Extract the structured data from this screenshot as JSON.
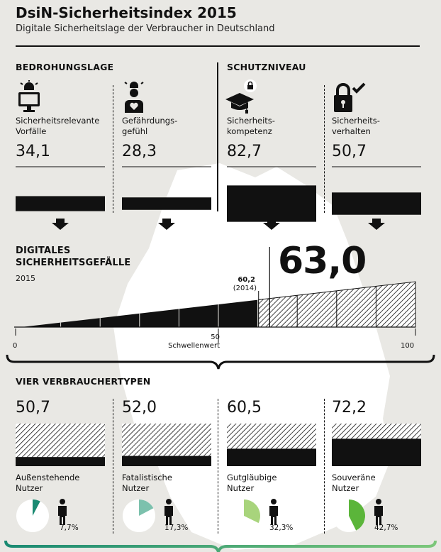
{
  "header": {
    "title": "DsiN-Sicherheitsindex 2015",
    "subtitle": "Digitale Sicherheitslage der Verbraucher in Deutschland"
  },
  "threat": {
    "heading": "BEDROHUNGSLAGE",
    "items": [
      {
        "label": "Sicherheitsrelevante Vorfälle",
        "value": "34,1",
        "icon": "alarm-monitor-icon"
      },
      {
        "label": "Gefährdungs-gefühl",
        "value": "28,3",
        "icon": "person-alarm-heart-icon"
      }
    ]
  },
  "protection": {
    "heading": "SCHUTZNIVEAU",
    "items": [
      {
        "label": "Sicherheits-kompetenz",
        "value": "82,7",
        "icon": "graduation-cap-lock-icon"
      },
      {
        "label": "Sicherheits-verhalten",
        "value": "50,7",
        "icon": "lock-check-icon"
      }
    ]
  },
  "gap": {
    "heading_line1": "DIGITALES",
    "heading_line2": "SICHERHEITSGEFÄLLE",
    "year": "2015",
    "current_value": "63,0",
    "previous_value": "60,2",
    "previous_year": "(2014)",
    "threshold_value": "50",
    "threshold_label": "Schwellenwert",
    "axis_min": "0",
    "axis_max": "100"
  },
  "types": {
    "heading": "VIER VERBRAUCHERTYPEN",
    "items": [
      {
        "value": "50,7",
        "label": "Außenstehende Nutzer",
        "share": "7,7%"
      },
      {
        "value": "52,0",
        "label": "Fatalistische Nutzer",
        "share": "17,3%"
      },
      {
        "value": "60,5",
        "label": "Gutgläubige Nutzer",
        "share": "32,3%"
      },
      {
        "value": "72,2",
        "label": "Souveräne Nutzer",
        "share": "42,7%"
      }
    ]
  },
  "colors": {
    "pie": [
      "#1a8a72",
      "#7cc1ad",
      "#a8d47c",
      "#5bb53a"
    ],
    "bottom_line": [
      "#1a8a72",
      "#7cc77a"
    ]
  },
  "chart_data": [
    {
      "type": "bar",
      "title": "BEDROHUNGSLAGE",
      "categories": [
        "Sicherheitsrelevante Vorfälle",
        "Gefährdungsgefühl"
      ],
      "values": [
        34.1,
        28.3
      ],
      "ylim": [
        0,
        100
      ]
    },
    {
      "type": "bar",
      "title": "SCHUTZNIVEAU",
      "categories": [
        "Sicherheitskompetenz",
        "Sicherheitsverhalten"
      ],
      "values": [
        82.7,
        50.7
      ],
      "ylim": [
        0,
        100
      ]
    },
    {
      "type": "area",
      "title": "DIGITALES SICHERHEITSGEFÄLLE",
      "values": [
        63.0
      ],
      "previous": 60.2,
      "threshold": 50,
      "xlim": [
        0,
        100
      ]
    },
    {
      "type": "bar",
      "title": "VIER VERBRAUCHERTYPEN",
      "categories": [
        "Außenstehende Nutzer",
        "Fatalistische Nutzer",
        "Gutgläubige Nutzer",
        "Souveräne Nutzer"
      ],
      "values": [
        50.7,
        52.0,
        60.5,
        72.2
      ],
      "ylim": [
        0,
        100
      ]
    },
    {
      "type": "pie",
      "categories": [
        "Außenstehende Nutzer",
        "Fatalistische Nutzer",
        "Gutgläubige Nutzer",
        "Souveräne Nutzer"
      ],
      "values": [
        7.7,
        17.3,
        32.3,
        42.7
      ]
    }
  ]
}
